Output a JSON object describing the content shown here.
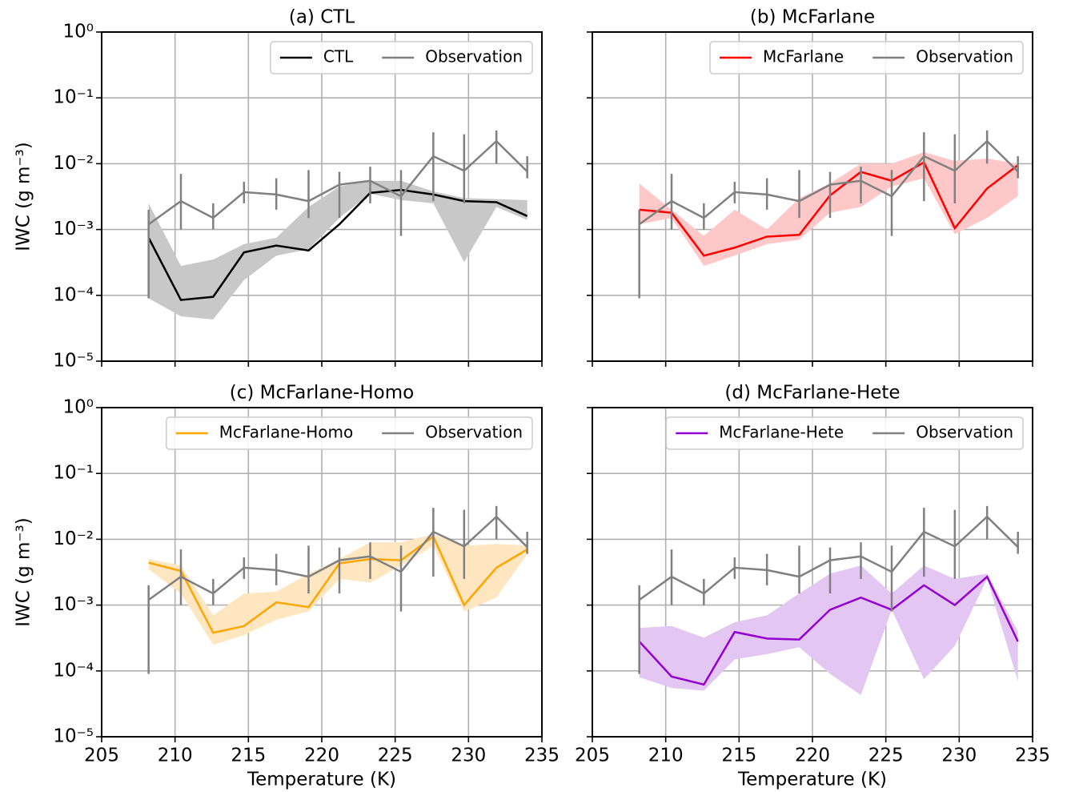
{
  "chart_data": [
    {
      "type": "line",
      "title": "(a) CTL",
      "y_label": "IWC (g m⁻³)",
      "y_scale": "log",
      "grid": true,
      "legend": "upper right",
      "x": [
        208.2,
        210.4,
        212.6,
        214.7,
        216.9,
        219.1,
        221.2,
        223.3,
        225.4,
        227.6,
        229.7,
        231.9,
        234.0
      ],
      "xlim": [
        205,
        235
      ],
      "xticks": [
        205,
        210,
        215,
        220,
        225,
        230,
        235
      ],
      "ylim": [
        1e-05,
        1
      ],
      "yticks": [
        {
          "value": 1e-05,
          "label": "10⁻⁵"
        },
        {
          "value": 0.0001,
          "label": "10⁻⁴"
        },
        {
          "value": 0.001,
          "label": "10⁻³"
        },
        {
          "value": 0.01,
          "label": "10⁻²"
        },
        {
          "value": 0.1,
          "label": "10⁻¹"
        },
        {
          "value": 1,
          "label": "10⁰"
        }
      ],
      "series": [
        {
          "name": "CTL",
          "color": "#000000",
          "band_color": "#c8c8c8",
          "values": [
            0.00075,
            8.5e-05,
            9.5e-05,
            0.00045,
            0.00057,
            0.00048,
            0.0012,
            0.0036,
            0.004,
            0.0034,
            0.0027,
            0.0026,
            0.0016
          ],
          "band_lower": [
            9e-05,
            4.8e-05,
            4.3e-05,
            0.00017,
            0.0004,
            0.0005,
            0.0015,
            0.0035,
            0.0028,
            0.0025,
            0.00032,
            0.0022,
            0.0014
          ],
          "band_upper": [
            0.0025,
            0.00028,
            0.00035,
            0.0006,
            0.00075,
            0.0022,
            0.0045,
            0.0055,
            0.0055,
            0.0038,
            0.003,
            0.0029,
            0.0028
          ]
        },
        {
          "name": "Observation",
          "color": "#808080",
          "values": [
            0.0012,
            0.0027,
            0.0015,
            0.0037,
            0.0034,
            0.0027,
            0.0048,
            0.0055,
            0.0032,
            0.013,
            0.0078,
            0.022,
            0.0076
          ],
          "err_lower": [
            9e-05,
            0.001,
            0.001,
            0.0025,
            0.002,
            0.0015,
            0.0015,
            0.0025,
            0.0008,
            0.0027,
            0.0025,
            0.01,
            0.006
          ],
          "err_upper": [
            0.002,
            0.007,
            0.0025,
            0.0053,
            0.006,
            0.008,
            0.0075,
            0.009,
            0.008,
            0.03,
            0.028,
            0.032,
            0.013
          ]
        }
      ]
    },
    {
      "type": "line",
      "title": "(b) McFarlane",
      "y_scale": "log",
      "grid": true,
      "legend": "upper right",
      "x": [
        208.2,
        210.4,
        212.6,
        214.7,
        216.9,
        219.1,
        221.2,
        223.3,
        225.4,
        227.6,
        229.7,
        231.9,
        234.0
      ],
      "xlim": [
        205,
        235
      ],
      "xticks": [
        205,
        210,
        215,
        220,
        225,
        230,
        235
      ],
      "ylim": [
        1e-05,
        1
      ],
      "yticks": [
        1e-05,
        0.0001,
        0.001,
        0.01,
        0.1,
        1
      ],
      "series": [
        {
          "name": "McFarlane",
          "color": "#ff0000",
          "band_color": "#ffc8c8",
          "values": [
            0.002,
            0.0018,
            0.0004,
            0.00053,
            0.00078,
            0.00083,
            0.0033,
            0.0075,
            0.0055,
            0.0105,
            0.00105,
            0.0042,
            0.0095
          ],
          "band_lower": [
            0.0012,
            0.0015,
            0.00028,
            0.0004,
            0.0006,
            0.0007,
            0.0018,
            0.0022,
            0.0045,
            0.006,
            0.00085,
            0.0015,
            0.0032
          ],
          "band_upper": [
            0.005,
            0.002,
            0.0008,
            0.002,
            0.001,
            0.003,
            0.005,
            0.01,
            0.01,
            0.015,
            0.011,
            0.012,
            0.01
          ]
        },
        {
          "name": "Observation",
          "color": "#808080",
          "values": [
            0.0012,
            0.0027,
            0.0015,
            0.0037,
            0.0034,
            0.0027,
            0.0048,
            0.0055,
            0.0032,
            0.013,
            0.0078,
            0.022,
            0.0076
          ],
          "err_lower": [
            9e-05,
            0.001,
            0.001,
            0.0025,
            0.002,
            0.0015,
            0.0015,
            0.0025,
            0.0008,
            0.0027,
            0.0025,
            0.01,
            0.006
          ],
          "err_upper": [
            0.002,
            0.007,
            0.0025,
            0.0053,
            0.006,
            0.008,
            0.0075,
            0.009,
            0.008,
            0.03,
            0.028,
            0.032,
            0.013
          ]
        }
      ]
    },
    {
      "type": "line",
      "title": "(c) McFarlane-Homo",
      "y_label": "IWC (g m⁻³)",
      "x_label": "Temperature (K)",
      "y_scale": "log",
      "grid": true,
      "legend": "upper right",
      "x": [
        208.2,
        210.4,
        212.6,
        214.7,
        216.9,
        219.1,
        221.2,
        223.3,
        225.4,
        227.6,
        229.7,
        231.9,
        234.0
      ],
      "xlim": [
        205,
        235
      ],
      "xticks": [
        205,
        210,
        215,
        220,
        225,
        230,
        235
      ],
      "ylim": [
        1e-05,
        1
      ],
      "yticks": [
        {
          "value": 1e-05,
          "label": "10⁻⁵"
        },
        {
          "value": 0.0001,
          "label": "10⁻⁴"
        },
        {
          "value": 0.001,
          "label": "10⁻³"
        },
        {
          "value": 0.01,
          "label": "10⁻²"
        },
        {
          "value": 0.1,
          "label": "10⁻¹"
        },
        {
          "value": 1,
          "label": "10⁰"
        }
      ],
      "series": [
        {
          "name": "McFarlane-Homo",
          "color": "#ffa500",
          "band_color": "#fee6c0",
          "values": [
            0.0044,
            0.0033,
            0.00038,
            0.00048,
            0.0011,
            0.00093,
            0.0043,
            0.005,
            0.0048,
            0.011,
            0.001,
            0.0037,
            0.007
          ],
          "band_lower": [
            0.0035,
            0.0015,
            0.00025,
            0.00035,
            0.0006,
            0.0008,
            0.0025,
            0.0022,
            0.004,
            0.008,
            0.0008,
            0.0013,
            0.006
          ],
          "band_upper": [
            0.005,
            0.004,
            0.0007,
            0.0015,
            0.0016,
            0.003,
            0.005,
            0.009,
            0.009,
            0.012,
            0.008,
            0.0085,
            0.008
          ]
        },
        {
          "name": "Observation",
          "color": "#808080",
          "values": [
            0.0012,
            0.0027,
            0.0015,
            0.0037,
            0.0034,
            0.0027,
            0.0048,
            0.0055,
            0.0032,
            0.013,
            0.0078,
            0.022,
            0.0076
          ],
          "err_lower": [
            9e-05,
            0.001,
            0.001,
            0.0025,
            0.002,
            0.0015,
            0.0015,
            0.0025,
            0.0008,
            0.0027,
            0.0025,
            0.01,
            0.006
          ],
          "err_upper": [
            0.002,
            0.007,
            0.0025,
            0.0053,
            0.006,
            0.008,
            0.0075,
            0.009,
            0.008,
            0.03,
            0.028,
            0.032,
            0.013
          ]
        }
      ]
    },
    {
      "type": "line",
      "title": "(d) McFarlane-Hete",
      "x_label": "Temperature (K)",
      "y_scale": "log",
      "grid": true,
      "legend": "upper right",
      "x": [
        208.2,
        210.4,
        212.6,
        214.7,
        216.9,
        219.1,
        221.2,
        223.3,
        225.4,
        227.6,
        229.7,
        231.9,
        234.0
      ],
      "xlim": [
        205,
        235
      ],
      "xticks": [
        205,
        210,
        215,
        220,
        225,
        230,
        235
      ],
      "ylim": [
        1e-05,
        1
      ],
      "yticks": [
        1e-05,
        0.0001,
        0.001,
        0.01,
        0.1,
        1
      ],
      "series": [
        {
          "name": "McFarlane-Hete",
          "color": "#9400d3",
          "band_color": "#e3c6f2",
          "values": [
            0.00028,
            8.2e-05,
            6.2e-05,
            0.00039,
            0.00031,
            0.0003,
            0.00085,
            0.0013,
            0.00085,
            0.002,
            0.001,
            0.0027,
            0.00028
          ],
          "band_lower": [
            8e-05,
            5.5e-05,
            5e-05,
            0.00015,
            0.00018,
            0.00023,
            9e-05,
            4.3e-05,
            0.00085,
            7.5e-05,
            0.00024,
            0.0025,
            7e-05
          ],
          "band_upper": [
            0.00045,
            0.00048,
            0.00032,
            0.00055,
            0.0007,
            0.0015,
            0.003,
            0.004,
            0.0015,
            0.004,
            0.0025,
            0.003,
            0.0004
          ]
        },
        {
          "name": "Observation",
          "color": "#808080",
          "values": [
            0.0012,
            0.0027,
            0.0015,
            0.0037,
            0.0034,
            0.0027,
            0.0048,
            0.0055,
            0.0032,
            0.013,
            0.0078,
            0.022,
            0.0076
          ],
          "err_lower": [
            9e-05,
            0.001,
            0.001,
            0.0025,
            0.002,
            0.0015,
            0.0015,
            0.0025,
            0.0008,
            0.0027,
            0.0025,
            0.01,
            0.006
          ],
          "err_upper": [
            0.002,
            0.007,
            0.0025,
            0.0053,
            0.006,
            0.008,
            0.0075,
            0.009,
            0.008,
            0.03,
            0.028,
            0.032,
            0.013
          ]
        }
      ]
    }
  ]
}
